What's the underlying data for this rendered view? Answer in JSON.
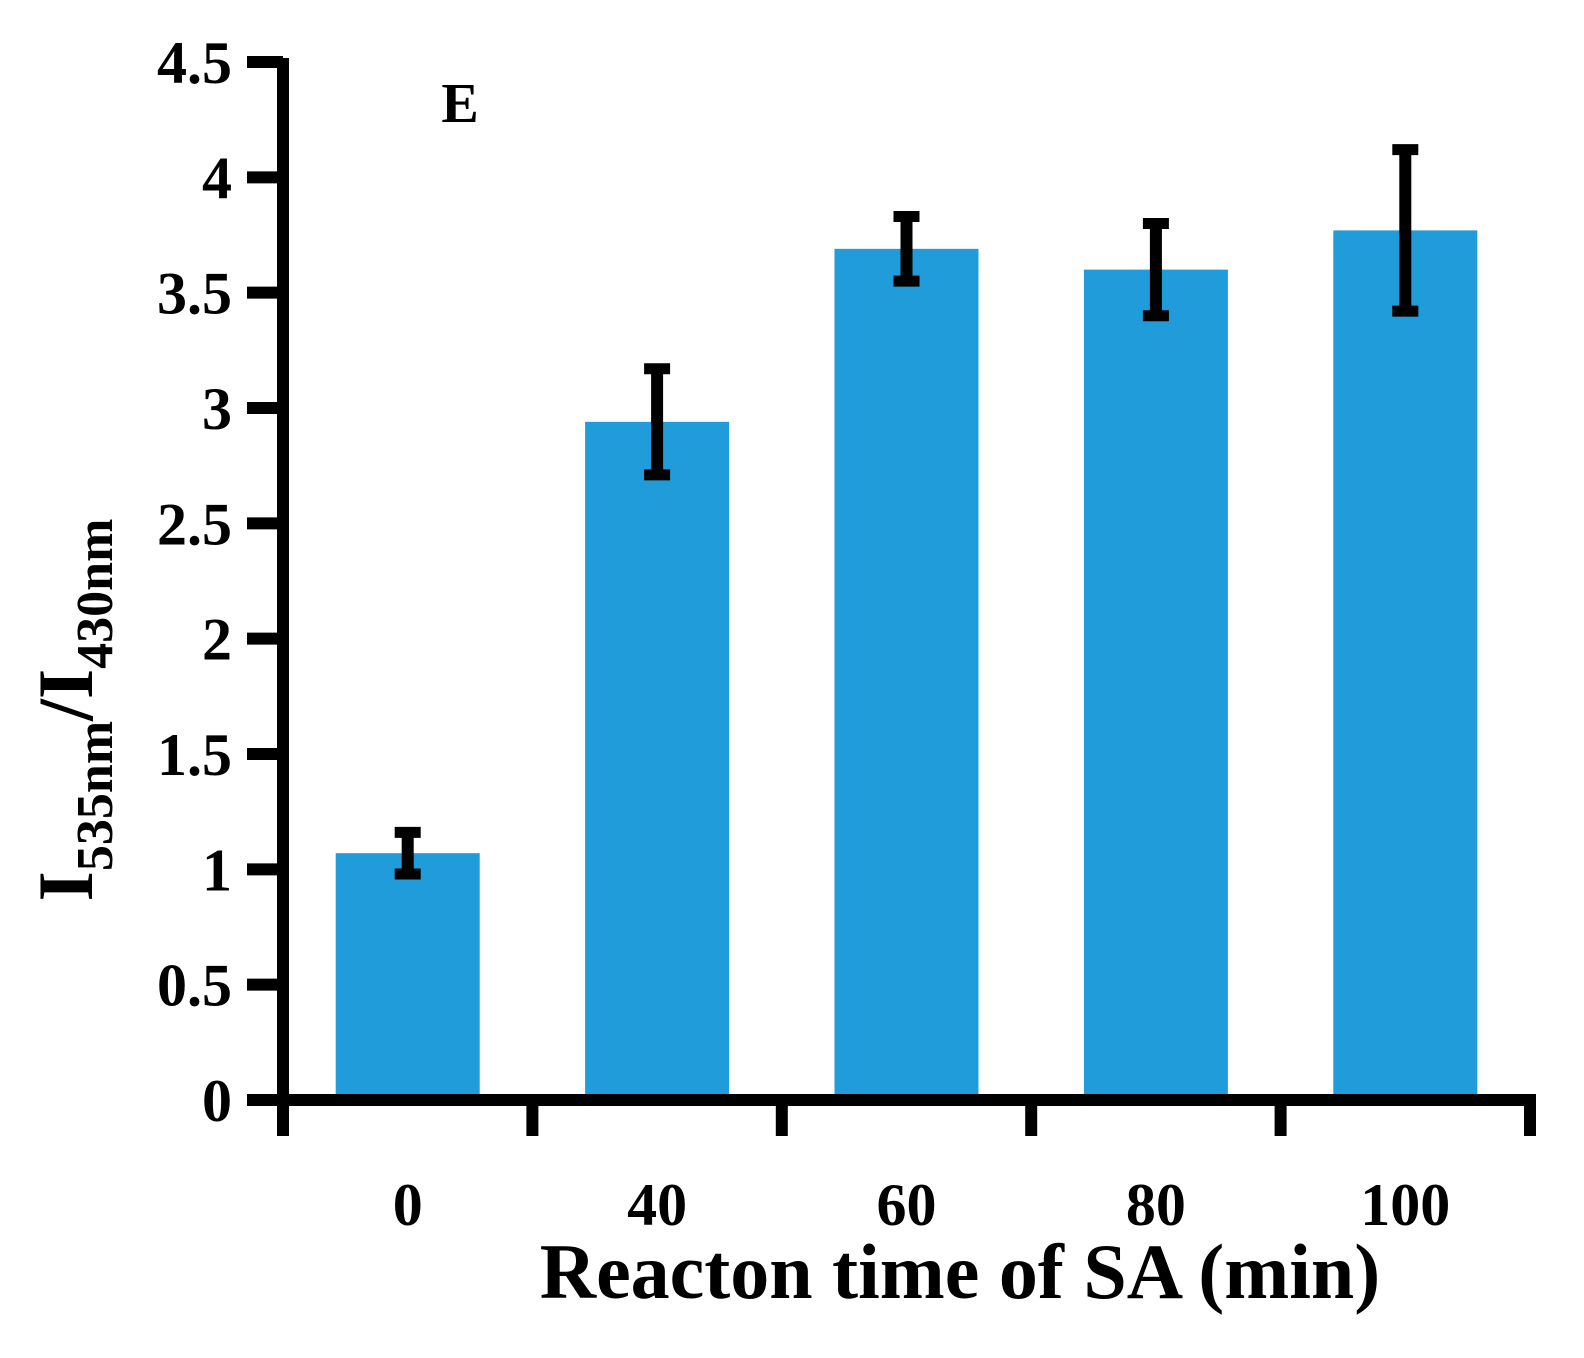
{
  "chart_data": {
    "type": "bar",
    "panel_label": "E",
    "categories": [
      "0",
      "40",
      "60",
      "80",
      "100"
    ],
    "series": [
      {
        "name": "I535nm/I430nm",
        "values": [
          1.07,
          2.94,
          3.69,
          3.6,
          3.77
        ],
        "errors": [
          0.09,
          0.23,
          0.14,
          0.2,
          0.35
        ],
        "color": "#1f9cd9"
      }
    ],
    "xlabel": "Reacton time of SA (min)",
    "ylabel": {
      "base1": "I",
      "sub1": "535nm",
      "slash": "/",
      "base2": "I",
      "sub2": "430nm"
    },
    "ylim": [
      0,
      4.5
    ],
    "yticks": [
      "0",
      "0.5",
      "1",
      "1.5",
      "2",
      "2.5",
      "3",
      "3.5",
      "4",
      "4.5"
    ],
    "grid": false,
    "legend": "none"
  }
}
